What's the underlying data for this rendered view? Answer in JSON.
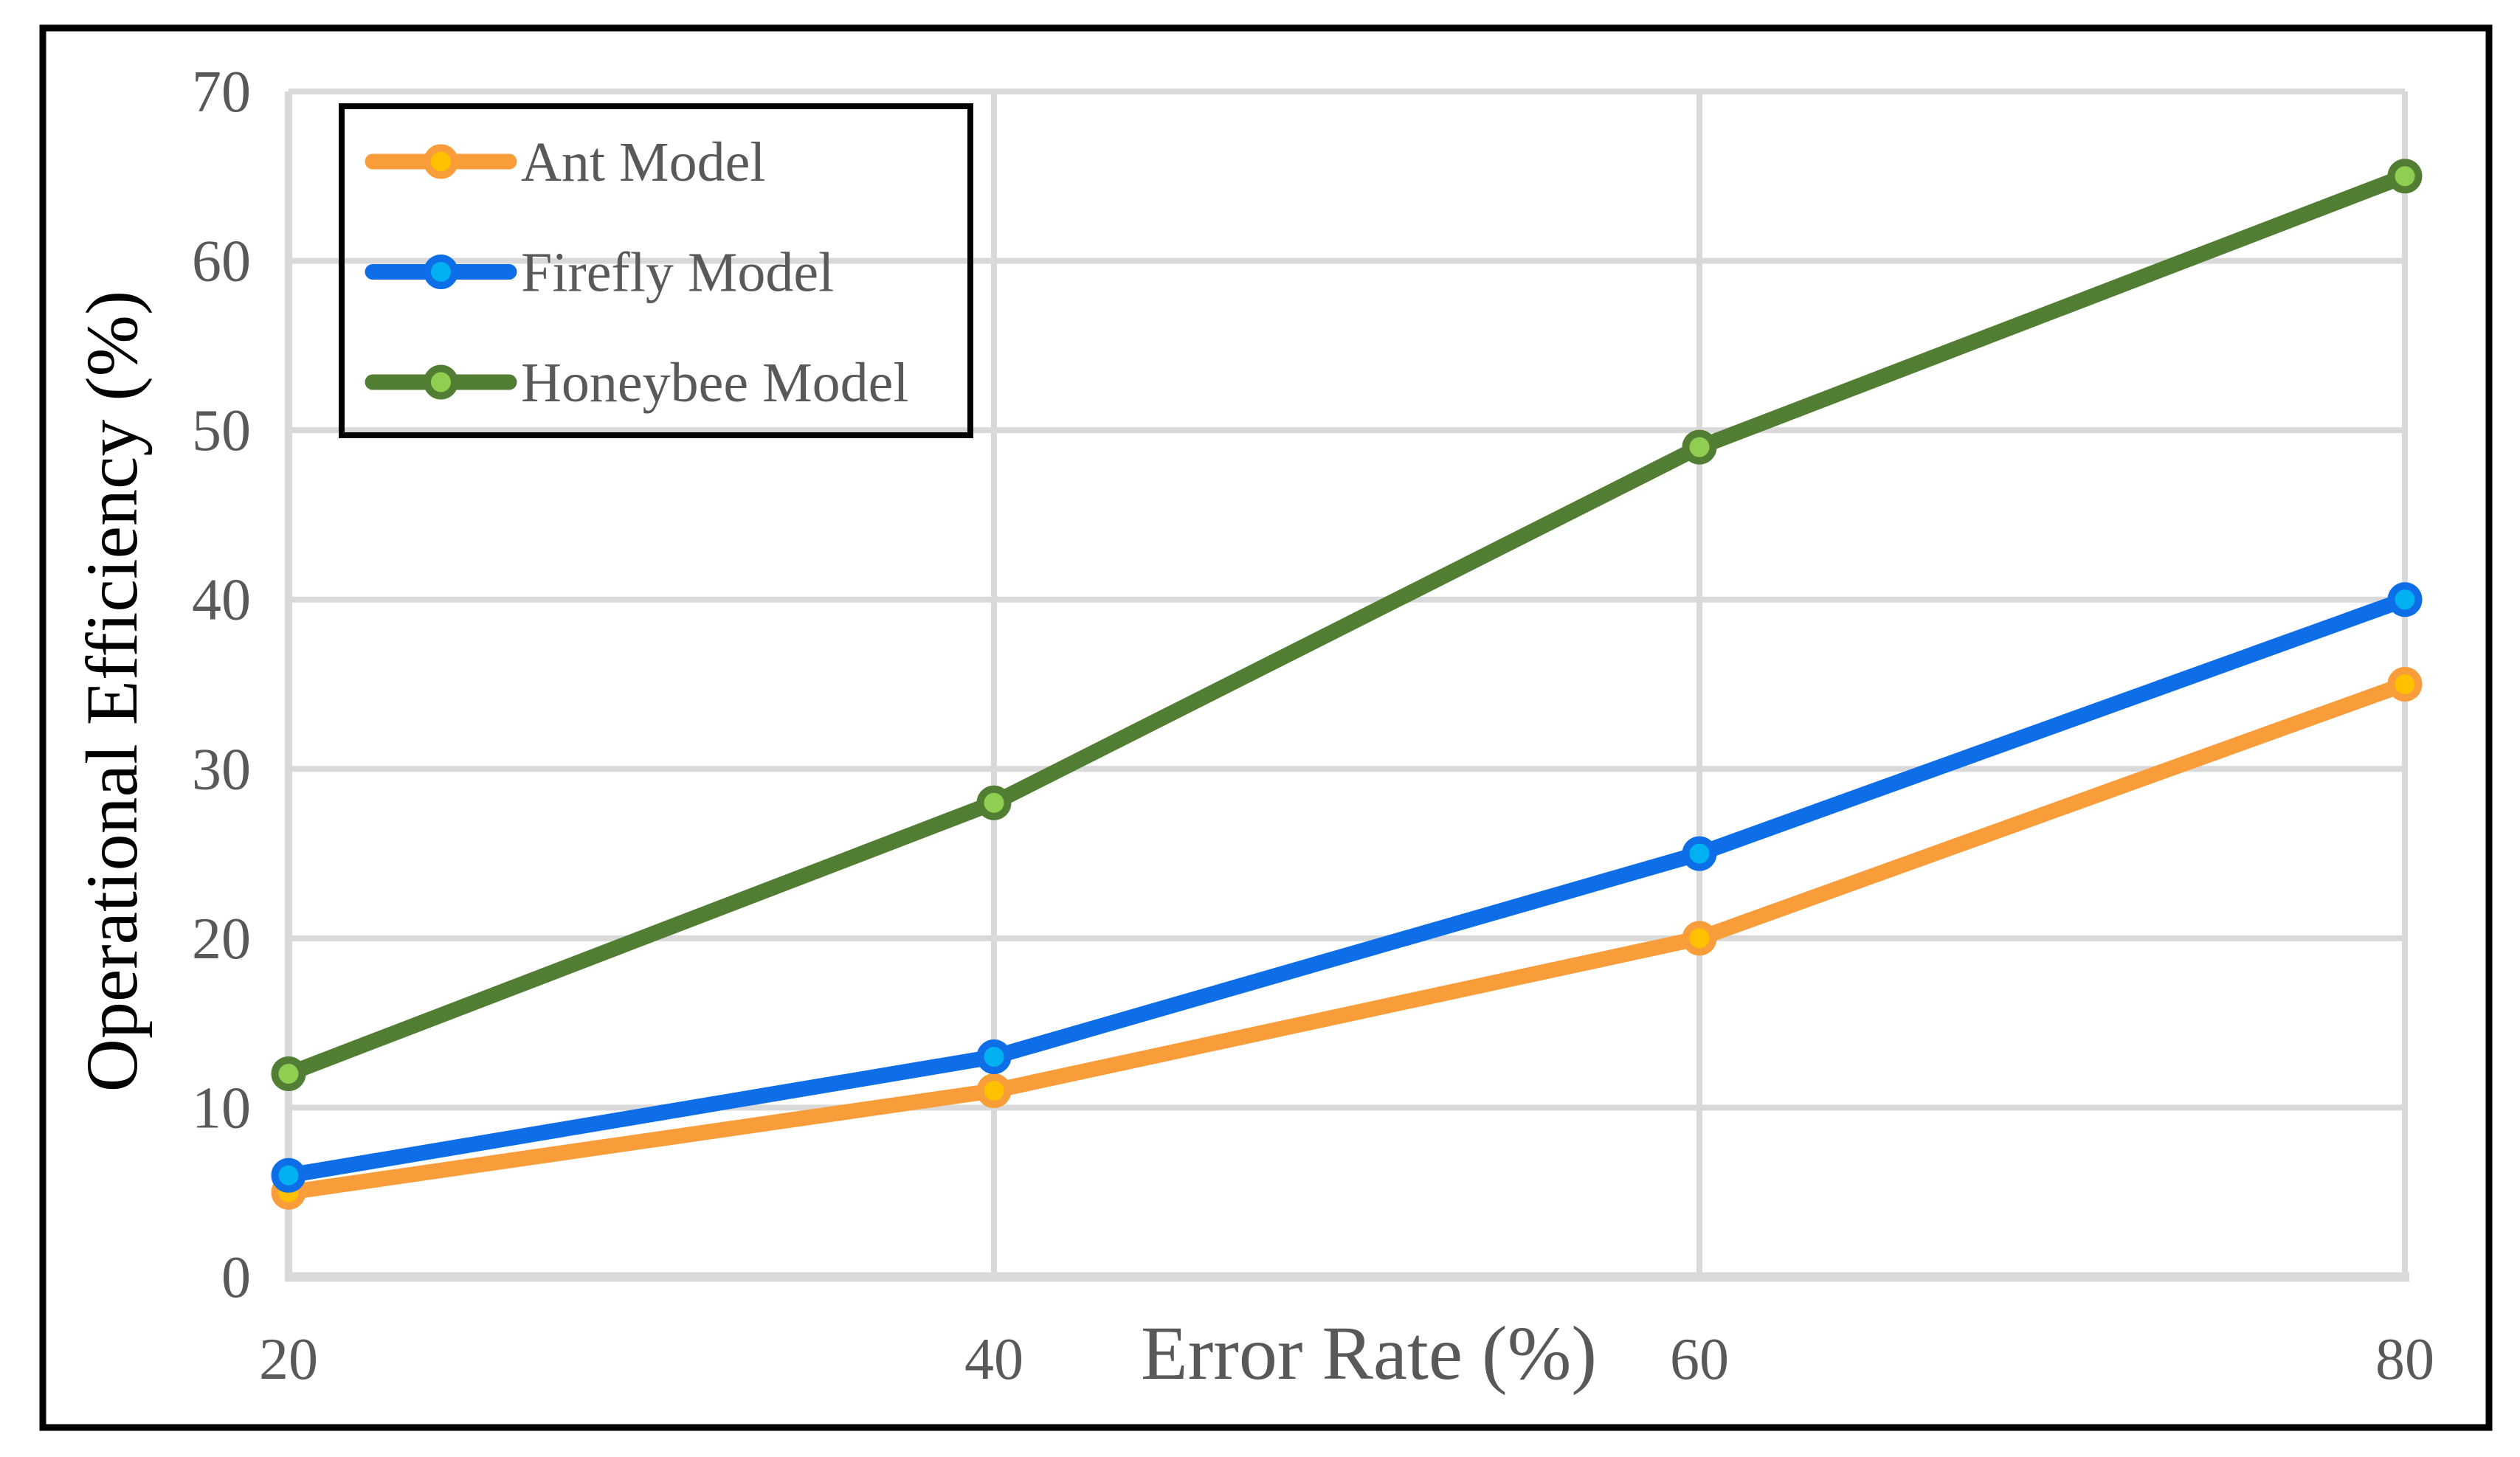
{
  "figure": {
    "background_color": "#FFFFFF",
    "border_color": "#000000"
  },
  "chart_data": {
    "type": "line",
    "title": "",
    "xlabel": "Error Rate (%)",
    "ylabel": "Operational Efficiency (%)",
    "x": [
      20,
      40,
      60,
      80
    ],
    "xticks": [
      "20",
      "40",
      "60",
      "80"
    ],
    "yticks": [
      "0",
      "10",
      "20",
      "30",
      "40",
      "50",
      "60",
      "70"
    ],
    "xlim": [
      20,
      80
    ],
    "ylim": [
      0,
      70
    ],
    "grid": true,
    "legend_position": "top-left",
    "series": [
      {
        "name": "Ant Model",
        "values": [
          5,
          11,
          20,
          35
        ],
        "line_color": "#F99D3B",
        "marker_fill": "#FFC000"
      },
      {
        "name": "Firefly Model",
        "values": [
          6,
          13,
          25,
          40
        ],
        "line_color": "#0D6EE8",
        "marker_fill": "#00B0F0"
      },
      {
        "name": "Honeybee Model",
        "values": [
          12,
          28,
          49,
          65
        ],
        "line_color": "#527E33",
        "marker_fill": "#8FCE50"
      }
    ],
    "colors": {
      "gridline": "#D9D9D9",
      "axis_line": "#D9D9D9",
      "tick_text": "#595959",
      "xlabel_text": "#595959",
      "ylabel_text": "#000000",
      "legend_text": "#595959",
      "legend_border": "#000000",
      "figure_border": "#000000"
    }
  }
}
